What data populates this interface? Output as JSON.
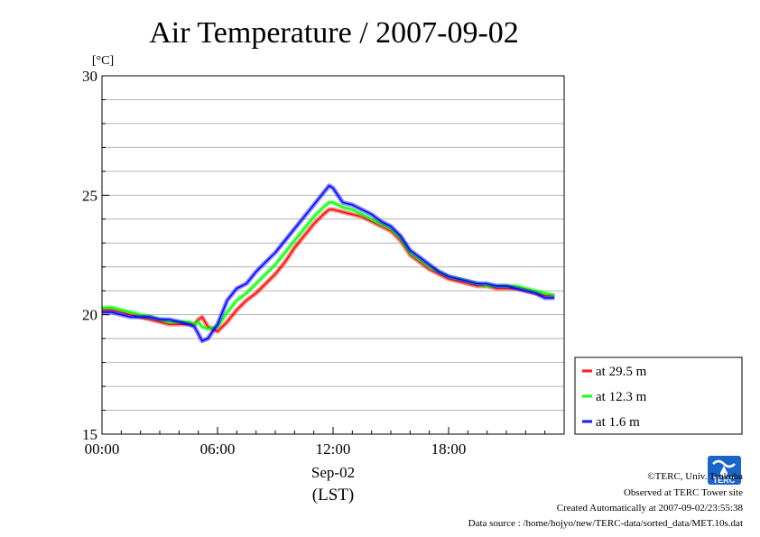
{
  "chart_data": {
    "type": "line",
    "title": "Air Temperature / 2007-09-02",
    "unit_label": "[°C]",
    "x_unit": "hours (LST)",
    "xlim": [
      0,
      24
    ],
    "ylim": [
      15,
      30
    ],
    "y_ticks": [
      15,
      20,
      25,
      30
    ],
    "y_tick_labels": [
      "15",
      "20",
      "25",
      "30"
    ],
    "x_ticks": [
      0,
      6,
      12,
      18
    ],
    "x_tick_labels": [
      "00:00",
      "06:00",
      "12:00",
      "18:00"
    ],
    "x_date_label": "Sep-02",
    "x_tz_label": "(LST)",
    "grid": true,
    "legend_position": "right",
    "series": [
      {
        "name": "at 29.5 m",
        "color": "#ff0000",
        "x": [
          0,
          0.5,
          1,
          1.5,
          2,
          2.5,
          3,
          3.5,
          4,
          4.5,
          4.8,
          5,
          5.2,
          5.5,
          6,
          6.5,
          7,
          7.5,
          8,
          8.5,
          9,
          9.5,
          10,
          10.5,
          11,
          11.5,
          11.8,
          12,
          12.5,
          13,
          13.5,
          14,
          14.5,
          15,
          15.5,
          16,
          16.5,
          17,
          17.5,
          18,
          18.5,
          19,
          19.5,
          20,
          20.5,
          21,
          21.5,
          22,
          22.5,
          23,
          23.5
        ],
        "y": [
          20.2,
          20.2,
          20.1,
          20.0,
          19.9,
          19.8,
          19.7,
          19.6,
          19.6,
          19.6,
          19.6,
          19.8,
          19.9,
          19.5,
          19.3,
          19.7,
          20.2,
          20.6,
          20.9,
          21.3,
          21.7,
          22.2,
          22.8,
          23.3,
          23.8,
          24.2,
          24.4,
          24.4,
          24.3,
          24.2,
          24.1,
          23.9,
          23.7,
          23.5,
          23.1,
          22.5,
          22.2,
          21.9,
          21.7,
          21.5,
          21.4,
          21.3,
          21.2,
          21.2,
          21.1,
          21.1,
          21.1,
          21.0,
          20.9,
          20.8,
          20.8
        ]
      },
      {
        "name": "at 12.3 m",
        "color": "#00ff00",
        "x": [
          0,
          0.5,
          1,
          1.5,
          2,
          2.5,
          3,
          3.5,
          4,
          4.5,
          4.8,
          5,
          5.2,
          5.5,
          6,
          6.5,
          7,
          7.5,
          8,
          8.5,
          9,
          9.5,
          10,
          10.5,
          11,
          11.5,
          11.8,
          12,
          12.5,
          13,
          13.5,
          14,
          14.5,
          15,
          15.5,
          16,
          16.5,
          17,
          17.5,
          18,
          18.5,
          19,
          19.5,
          20,
          20.5,
          21,
          21.5,
          22,
          22.5,
          23,
          23.5
        ],
        "y": [
          20.3,
          20.3,
          20.2,
          20.1,
          20.0,
          19.9,
          19.8,
          19.7,
          19.7,
          19.7,
          19.6,
          19.7,
          19.5,
          19.4,
          19.5,
          20.1,
          20.6,
          20.9,
          21.3,
          21.7,
          22.1,
          22.6,
          23.1,
          23.6,
          24.1,
          24.5,
          24.7,
          24.7,
          24.5,
          24.4,
          24.2,
          24.0,
          23.8,
          23.6,
          23.2,
          22.6,
          22.3,
          22.0,
          21.8,
          21.6,
          21.5,
          21.4,
          21.3,
          21.2,
          21.2,
          21.2,
          21.2,
          21.1,
          21.0,
          20.9,
          20.8
        ]
      },
      {
        "name": "at 1.6 m",
        "color": "#0000ff",
        "x": [
          0,
          0.5,
          1,
          1.5,
          2,
          2.5,
          3,
          3.5,
          4,
          4.5,
          4.8,
          5,
          5.2,
          5.5,
          6,
          6.5,
          7,
          7.5,
          8,
          8.5,
          9,
          9.5,
          10,
          10.5,
          11,
          11.5,
          11.8,
          12,
          12.5,
          13,
          13.5,
          14,
          14.5,
          15,
          15.5,
          16,
          16.5,
          17,
          17.5,
          18,
          18.5,
          19,
          19.5,
          20,
          20.5,
          21,
          21.5,
          22,
          22.5,
          23,
          23.5
        ],
        "y": [
          20.1,
          20.1,
          20.0,
          19.9,
          19.9,
          19.9,
          19.8,
          19.8,
          19.7,
          19.6,
          19.5,
          19.2,
          18.9,
          19.0,
          19.6,
          20.6,
          21.1,
          21.3,
          21.8,
          22.2,
          22.6,
          23.1,
          23.6,
          24.1,
          24.6,
          25.1,
          25.4,
          25.3,
          24.7,
          24.6,
          24.4,
          24.2,
          23.9,
          23.7,
          23.3,
          22.7,
          22.4,
          22.1,
          21.8,
          21.6,
          21.5,
          21.4,
          21.3,
          21.3,
          21.2,
          21.2,
          21.1,
          21.0,
          20.9,
          20.7,
          20.7
        ]
      }
    ]
  },
  "credits": {
    "copyright": "©TERC, Univ. Tsukuba",
    "observed": "Observed at TERC Tower site",
    "created": "Created Automatically at 2007-09-02/23:55:38",
    "source": "Data source : /home/hojyo/new/TERC-data/sorted_data/MET.10s.dat"
  },
  "logo": {
    "text": "TERC",
    "color": "#1a66c8"
  }
}
